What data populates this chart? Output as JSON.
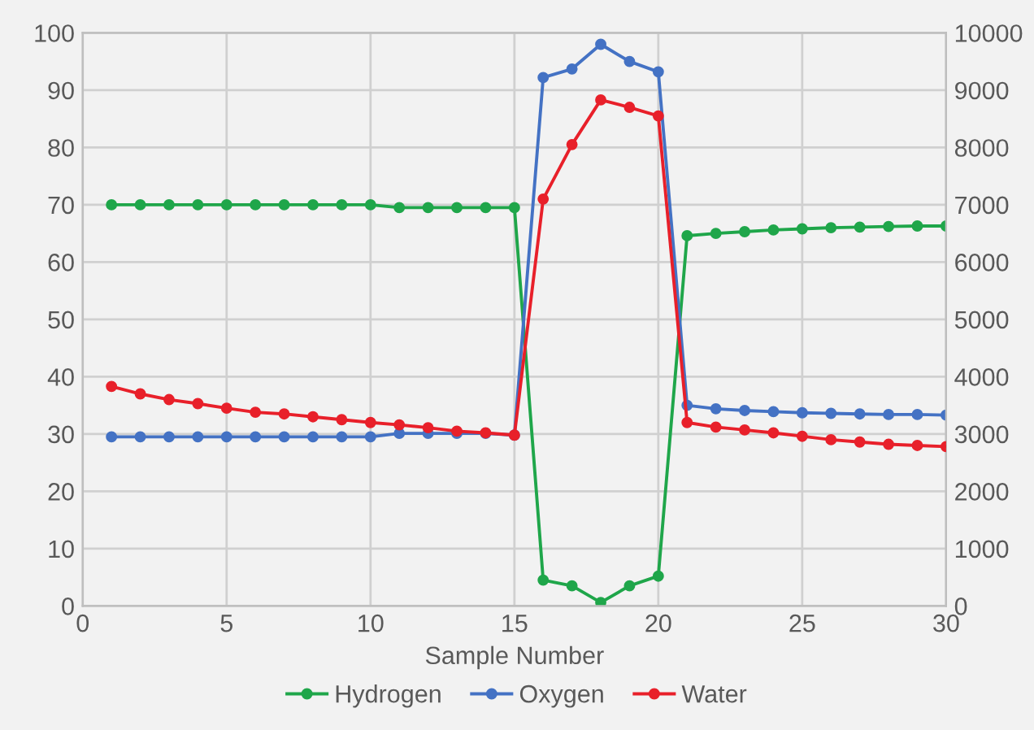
{
  "chart_data": {
    "type": "line",
    "xlabel": "Sample Number",
    "x": [
      1,
      2,
      3,
      4,
      5,
      6,
      7,
      8,
      9,
      10,
      11,
      12,
      13,
      14,
      15,
      16,
      17,
      18,
      19,
      20,
      21,
      22,
      23,
      24,
      25,
      26,
      27,
      28,
      29,
      30
    ],
    "xlim": [
      0,
      30
    ],
    "xticks": [
      0,
      5,
      10,
      15,
      20,
      25,
      30
    ],
    "ylim": [
      0,
      100
    ],
    "yticks": [
      0,
      10,
      20,
      30,
      40,
      50,
      60,
      70,
      80,
      90,
      100
    ],
    "y2lim": [
      0,
      10000
    ],
    "y2ticks": [
      0,
      1000,
      2000,
      3000,
      4000,
      5000,
      6000,
      7000,
      8000,
      9000,
      10000
    ],
    "grid": true,
    "legend": "bottom",
    "marker": "circle",
    "line_style": "solid",
    "series": [
      {
        "name": "Hydrogen",
        "color": "#1fa64a",
        "values": [
          70,
          70,
          70,
          70,
          70,
          70,
          70,
          70,
          70,
          70,
          69.5,
          69.5,
          69.5,
          69.5,
          69.5,
          4.5,
          3.5,
          0.6,
          3.5,
          5.2,
          64.6,
          65,
          65.3,
          65.6,
          65.8,
          66,
          66.1,
          66.2,
          66.3,
          66.3
        ]
      },
      {
        "name": "Oxygen",
        "color": "#4472c4",
        "values": [
          29.5,
          29.5,
          29.5,
          29.5,
          29.5,
          29.5,
          29.5,
          29.5,
          29.5,
          29.5,
          30.1,
          30.1,
          30.1,
          30.1,
          29.8,
          92.2,
          93.7,
          98,
          95,
          93.2,
          35,
          34.4,
          34.1,
          33.9,
          33.7,
          33.6,
          33.5,
          33.4,
          33.4,
          33.3
        ]
      },
      {
        "name": "Water",
        "color": "#e8202a",
        "axis": "y2",
        "values": [
          3830,
          3700,
          3600,
          3530,
          3450,
          3380,
          3350,
          3300,
          3250,
          3200,
          3160,
          3110,
          3050,
          3020,
          2980,
          7100,
          8050,
          8830,
          8700,
          8550,
          3200,
          3120,
          3070,
          3020,
          2960,
          2900,
          2860,
          2820,
          2800,
          2780
        ]
      }
    ]
  }
}
